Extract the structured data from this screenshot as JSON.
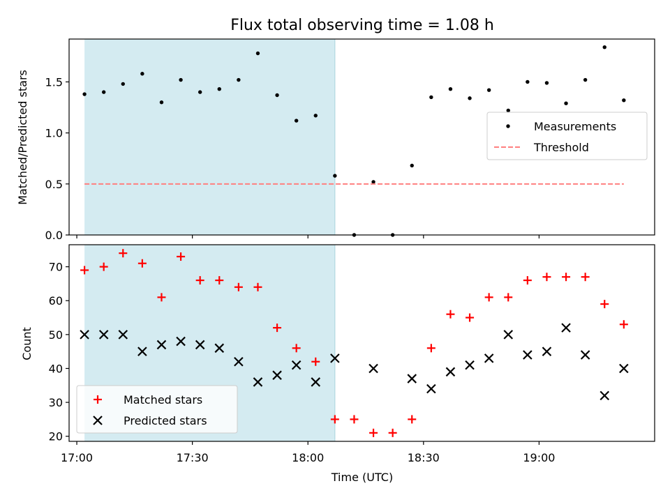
{
  "chart_data": [
    {
      "type": "scatter",
      "title": "Flux total observing time = 1.08 h",
      "xlabel": "",
      "ylabel": "Matched/Predicted stars",
      "xlim": [
        "16:58",
        "19:30"
      ],
      "ylim": [
        0,
        1.92
      ],
      "x_tick_labels": [
        "17:00",
        "17:30",
        "18:00",
        "18:30",
        "19:00"
      ],
      "y_ticks": [
        0.0,
        0.5,
        1.0,
        1.5
      ],
      "y_tick_labels": [
        "0.0",
        "0.5",
        "1.0",
        "1.5"
      ],
      "legend_position": "center-right",
      "highlight_span": [
        "17:02",
        "18:07"
      ],
      "highlight_color": "#d4ebf1",
      "series": [
        {
          "name": "Measurements",
          "marker": "dot",
          "color": "#000000",
          "x": [
            "17:02",
            "17:07",
            "17:12",
            "17:17",
            "17:22",
            "17:27",
            "17:32",
            "17:37",
            "17:42",
            "17:47",
            "17:52",
            "17:57",
            "18:02",
            "18:07",
            "18:12",
            "18:17",
            "18:22",
            "18:27",
            "18:32",
            "18:37",
            "18:42",
            "18:47",
            "18:52",
            "18:57",
            "19:02",
            "19:07",
            "19:12",
            "19:17",
            "19:22"
          ],
          "values": [
            1.38,
            1.4,
            1.48,
            1.58,
            1.3,
            1.52,
            1.4,
            1.43,
            1.52,
            1.78,
            1.37,
            1.12,
            1.17,
            0.58,
            0.0,
            0.52,
            0.0,
            0.68,
            1.35,
            1.43,
            1.34,
            1.42,
            1.22,
            1.5,
            1.49,
            1.29,
            1.52,
            1.84,
            1.32
          ]
        },
        {
          "name": "Threshold",
          "marker": "dashed-line",
          "color": "#ff7f7f",
          "x": [
            "17:02",
            "19:22"
          ],
          "values": [
            0.5,
            0.5
          ]
        }
      ]
    },
    {
      "type": "scatter",
      "title": "",
      "xlabel": "Time (UTC)",
      "ylabel": "Count",
      "xlim": [
        "16:58",
        "19:30"
      ],
      "ylim": [
        18.5,
        76.5
      ],
      "x_tick_labels": [
        "17:00",
        "17:30",
        "18:00",
        "18:30",
        "19:00"
      ],
      "y_ticks": [
        20,
        30,
        40,
        50,
        60,
        70
      ],
      "y_tick_labels": [
        "20",
        "30",
        "40",
        "50",
        "60",
        "70"
      ],
      "legend_position": "bottom-left",
      "highlight_span": [
        "17:02",
        "18:07"
      ],
      "highlight_color": "#d4ebf1",
      "series": [
        {
          "name": "Matched stars",
          "marker": "plus",
          "color": "#ff0000",
          "x": [
            "17:02",
            "17:07",
            "17:12",
            "17:17",
            "17:22",
            "17:27",
            "17:32",
            "17:37",
            "17:42",
            "17:47",
            "17:52",
            "17:57",
            "18:02",
            "18:07",
            "18:12",
            "18:17",
            "18:22",
            "18:27",
            "18:32",
            "18:37",
            "18:42",
            "18:47",
            "18:52",
            "18:57",
            "19:02",
            "19:07",
            "19:12",
            "19:17",
            "19:22"
          ],
          "values": [
            69,
            70,
            74,
            71,
            61,
            73,
            66,
            66,
            64,
            64,
            52,
            46,
            42,
            25,
            25,
            21,
            21,
            25,
            46,
            56,
            55,
            61,
            61,
            66,
            67,
            67,
            67,
            59,
            53
          ]
        },
        {
          "name": "Predicted stars",
          "marker": "x",
          "color": "#000000",
          "x": [
            "17:02",
            "17:07",
            "17:12",
            "17:17",
            "17:22",
            "17:27",
            "17:32",
            "17:37",
            "17:42",
            "17:47",
            "17:52",
            "17:57",
            "18:02",
            "18:07",
            "18:17",
            "18:27",
            "18:32",
            "18:37",
            "18:42",
            "18:47",
            "18:52",
            "18:57",
            "19:02",
            "19:07",
            "19:12",
            "19:17",
            "19:22"
          ],
          "values": [
            50,
            50,
            50,
            45,
            47,
            48,
            47,
            46,
            42,
            36,
            38,
            41,
            36,
            43,
            40,
            37,
            34,
            39,
            41,
            43,
            50,
            44,
            45,
            52,
            44,
            32,
            40
          ]
        }
      ]
    }
  ]
}
